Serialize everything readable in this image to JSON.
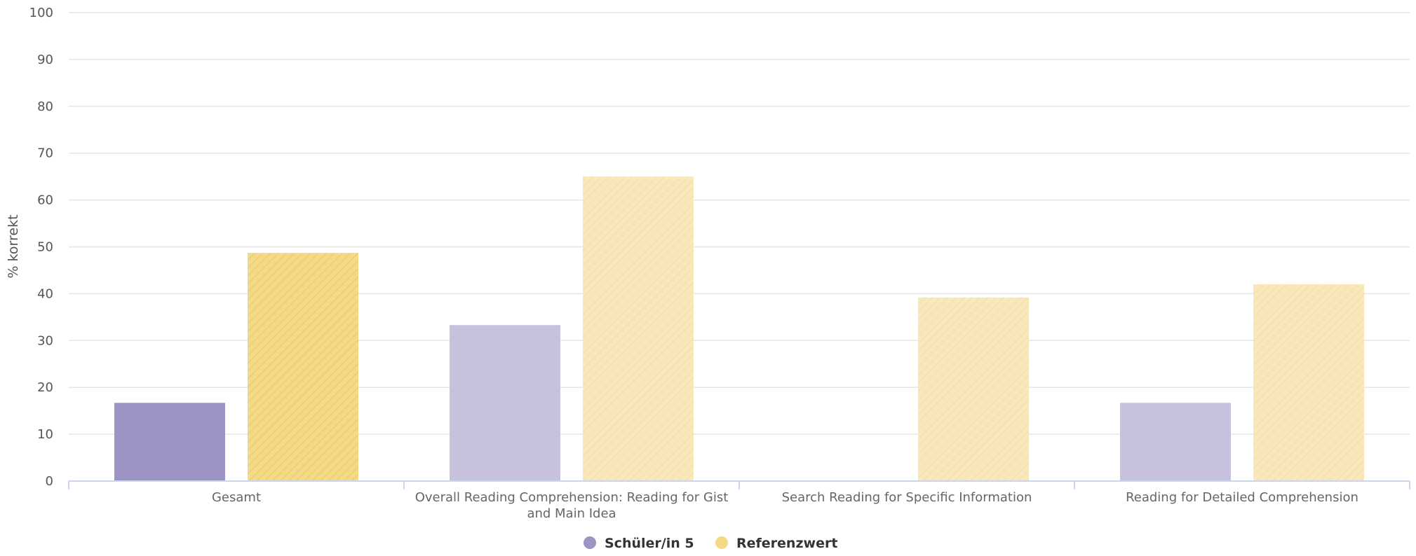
{
  "chart_data": {
    "type": "bar",
    "ylabel": "% korrekt",
    "xlabel": "",
    "ylim": [
      0,
      100
    ],
    "yticks": [
      0,
      10,
      20,
      30,
      40,
      50,
      60,
      70,
      80,
      90,
      100
    ],
    "grid": true,
    "legend_position": "bottom-center",
    "categories": [
      [
        "Gesamt"
      ],
      [
        "Overall Reading Comprehension: Reading for Gist",
        "and Main Idea"
      ],
      [
        "Search Reading for Specific Information"
      ],
      [
        "Reading for Detailed Comprehension"
      ]
    ],
    "series": [
      {
        "name": "Schüler/in 5",
        "color": "#9b94c4",
        "color_light": "#c6c2dd",
        "values": [
          16.7,
          33.3,
          0,
          16.7
        ]
      },
      {
        "name": "Referenzwert",
        "color": "#f4d987",
        "color_light": "#f8e8bb",
        "values": [
          48.7,
          65,
          39.2,
          42
        ]
      }
    ]
  }
}
